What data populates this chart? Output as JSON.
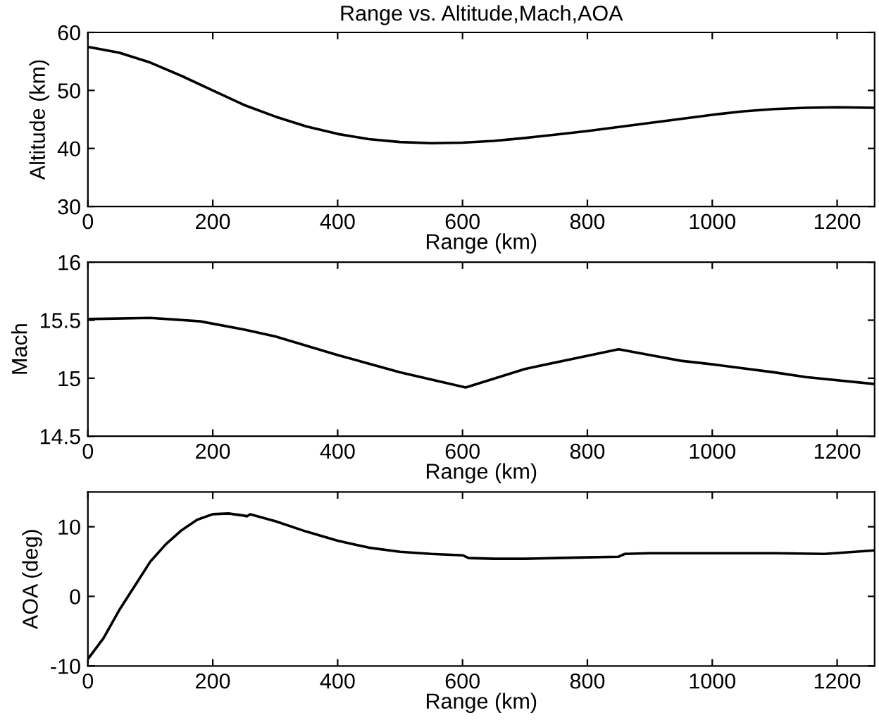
{
  "chart_data": [
    {
      "type": "line",
      "title": "Range vs. Altitude,Mach,AOA",
      "xlabel": "Range (km)",
      "ylabel": "Altitude (km)",
      "xlim": [
        0,
        1260
      ],
      "xticks": [
        0,
        200,
        400,
        600,
        800,
        1000,
        1200
      ],
      "ylim": [
        30,
        60
      ],
      "yticks": [
        30,
        40,
        50,
        60
      ],
      "grid": false,
      "legend": false,
      "series": [
        {
          "color": "#000000",
          "x": [
            0,
            50,
            100,
            150,
            200,
            250,
            300,
            350,
            400,
            450,
            500,
            550,
            600,
            650,
            700,
            750,
            800,
            850,
            900,
            950,
            1000,
            1050,
            1100,
            1150,
            1200,
            1260
          ],
          "values": [
            57.5,
            56.5,
            54.8,
            52.5,
            50,
            47.5,
            45.5,
            43.8,
            42.5,
            41.6,
            41.1,
            40.9,
            41,
            41.3,
            41.8,
            42.4,
            43,
            43.7,
            44.4,
            45.1,
            45.8,
            46.4,
            46.8,
            47,
            47.1,
            47
          ]
        }
      ]
    },
    {
      "type": "line",
      "xlabel": "Range (km)",
      "ylabel": "Mach",
      "xlim": [
        0,
        1260
      ],
      "xticks": [
        0,
        200,
        400,
        600,
        800,
        1000,
        1200
      ],
      "ylim": [
        14.5,
        16
      ],
      "yticks": [
        14.5,
        15,
        15.5,
        16
      ],
      "grid": false,
      "legend": false,
      "series": [
        {
          "color": "#000000",
          "x": [
            0,
            100,
            180,
            250,
            300,
            400,
            500,
            605,
            700,
            850,
            950,
            1000,
            1100,
            1150,
            1260
          ],
          "values": [
            15.51,
            15.52,
            15.49,
            15.42,
            15.36,
            15.2,
            15.05,
            14.92,
            15.08,
            15.25,
            15.15,
            15.12,
            15.05,
            15.01,
            14.95
          ]
        }
      ]
    },
    {
      "type": "line",
      "xlabel": "Range (km)",
      "ylabel": "AOA (deg)",
      "xlim": [
        0,
        1260
      ],
      "xticks": [
        0,
        200,
        400,
        600,
        800,
        1000,
        1200
      ],
      "ylim": [
        -10,
        15
      ],
      "yticks": [
        -10,
        0,
        10
      ],
      "grid": false,
      "legend": false,
      "series": [
        {
          "color": "#000000",
          "x": [
            0,
            25,
            50,
            75,
            100,
            125,
            150,
            175,
            200,
            225,
            250,
            255,
            260,
            300,
            350,
            400,
            450,
            500,
            550,
            600,
            610,
            650,
            700,
            750,
            800,
            850,
            860,
            900,
            1000,
            1100,
            1180,
            1260
          ],
          "values": [
            -9,
            -6,
            -2,
            1.5,
            5,
            7.5,
            9.5,
            11,
            11.8,
            11.9,
            11.6,
            11.5,
            11.8,
            10.8,
            9.3,
            8,
            7,
            6.4,
            6.1,
            5.9,
            5.5,
            5.4,
            5.4,
            5.5,
            5.6,
            5.7,
            6.1,
            6.2,
            6.2,
            6.2,
            6.1,
            6.6
          ]
        }
      ]
    }
  ]
}
